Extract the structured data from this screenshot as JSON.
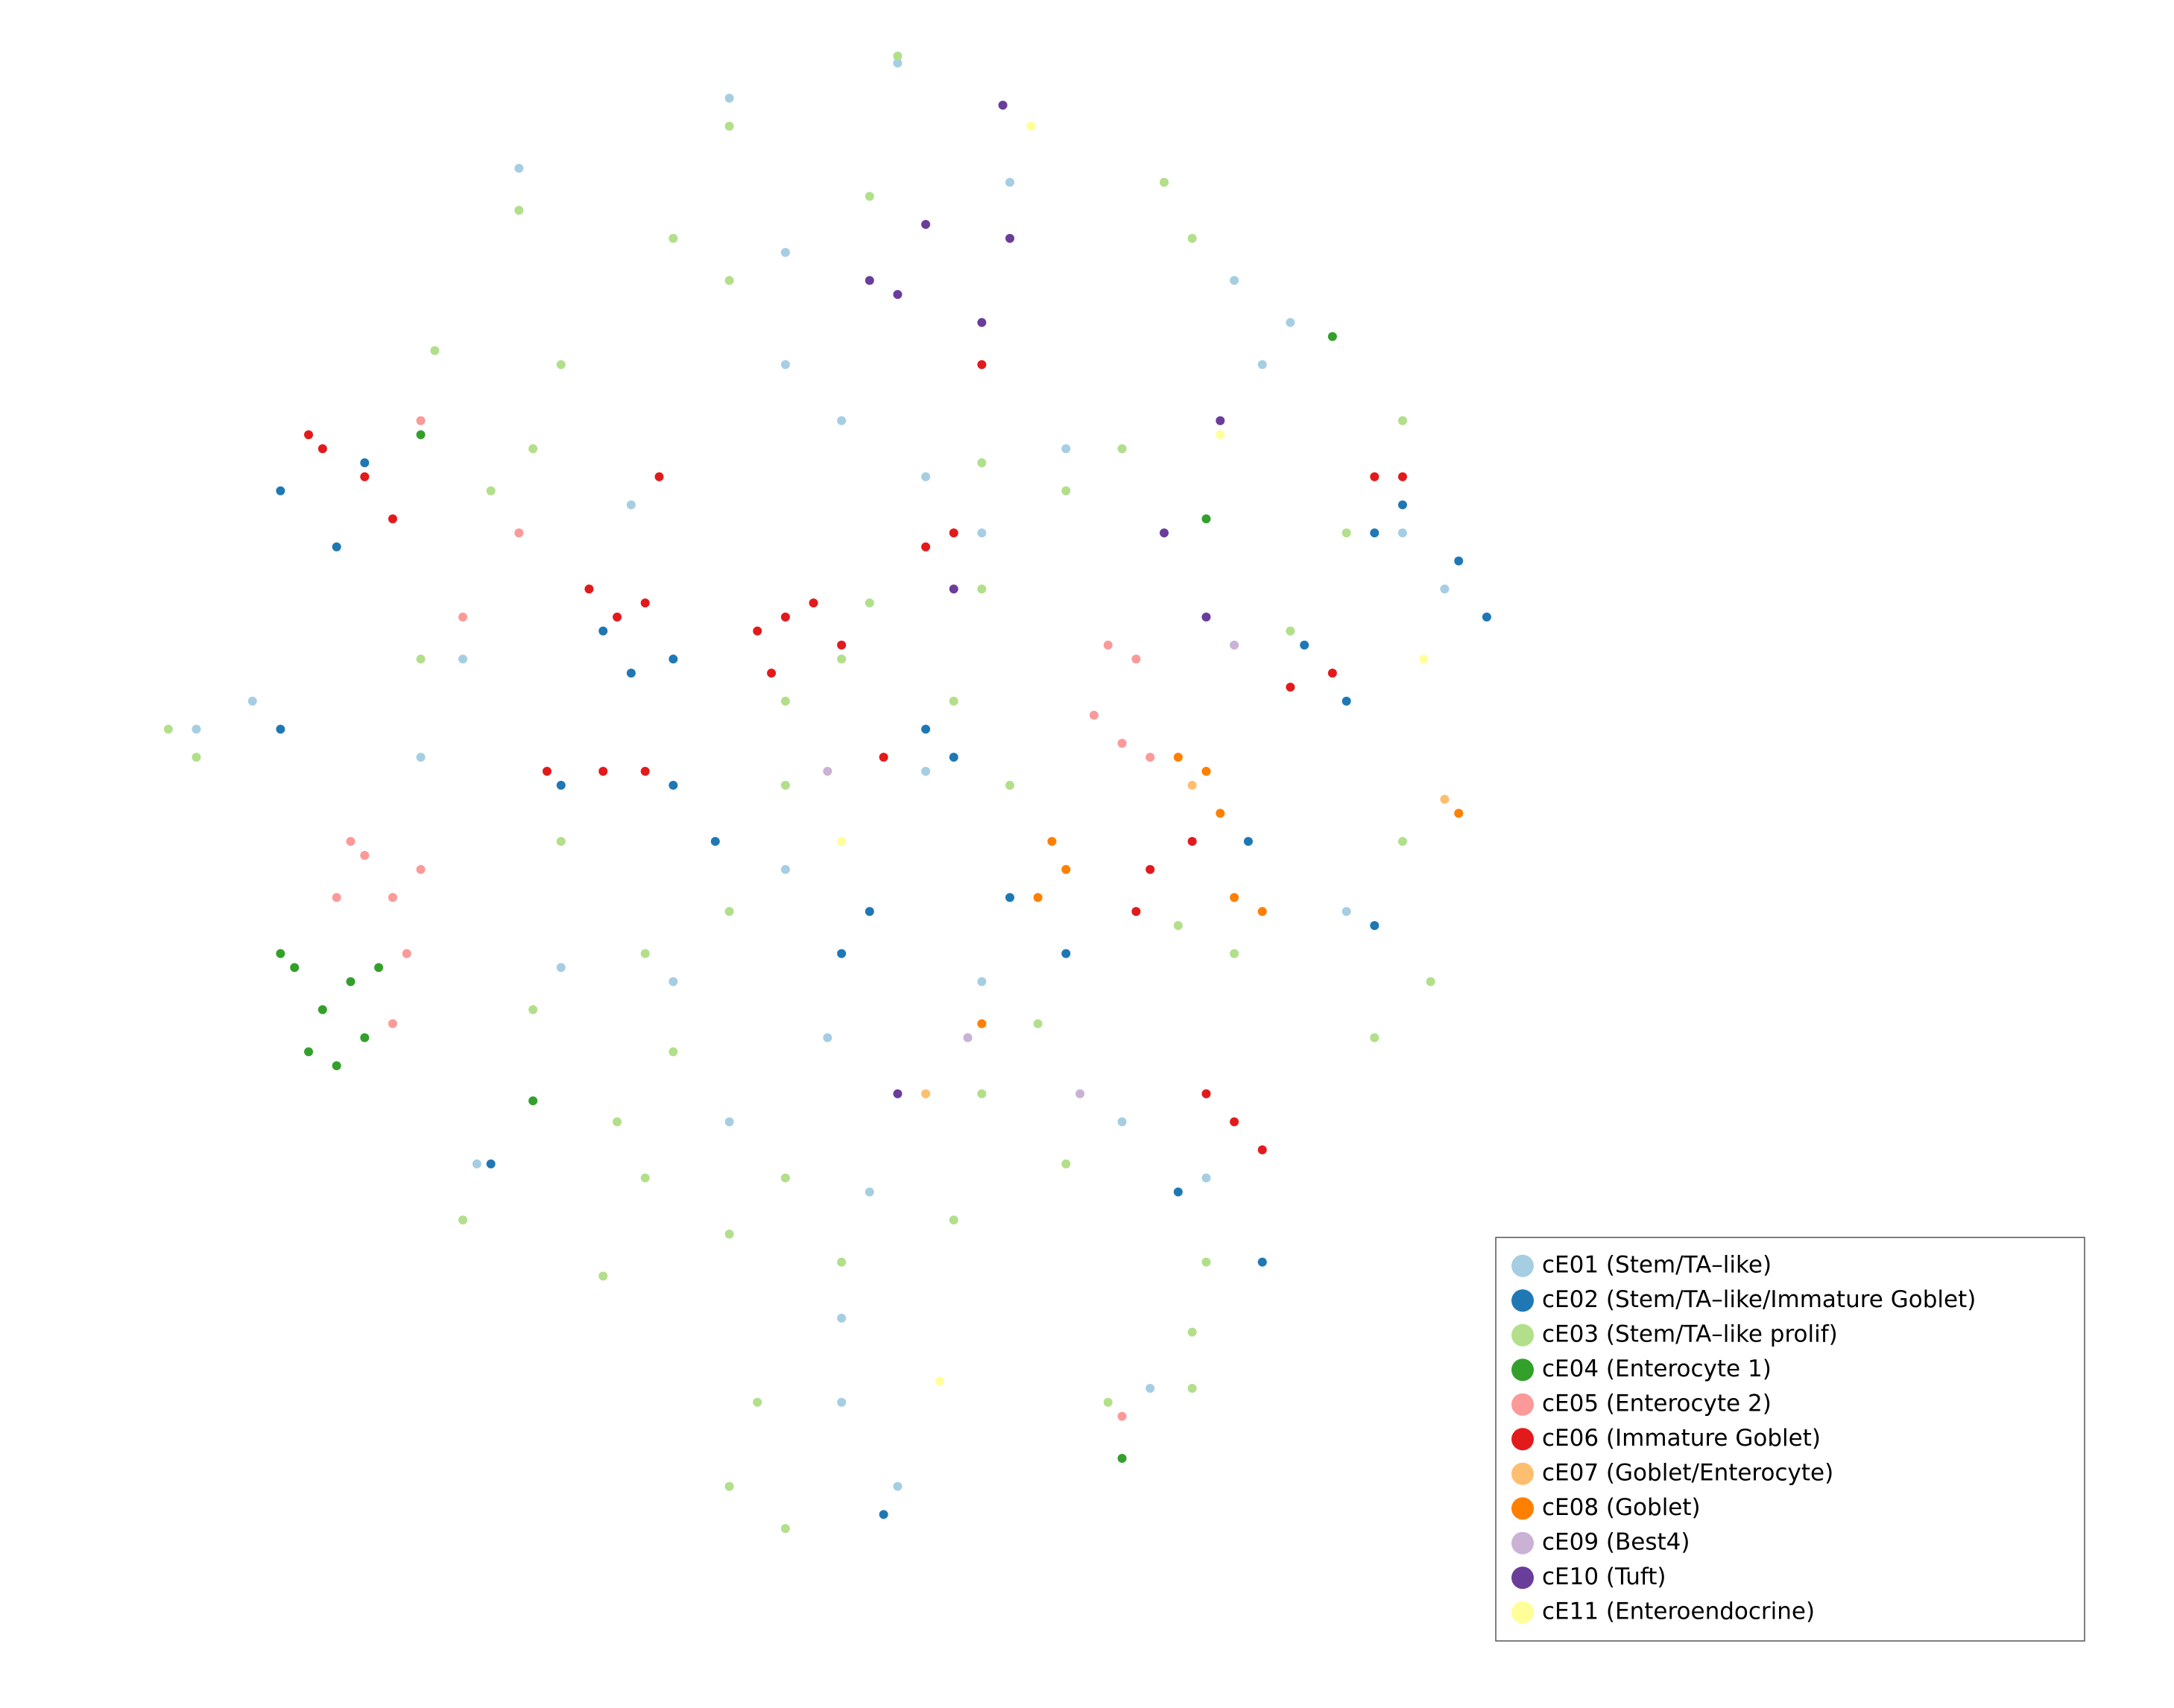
{
  "chart_data": {
    "type": "scatter",
    "xlim": [
      0,
      1550
    ],
    "ylim": [
      1218,
      0
    ],
    "legend": "lower right",
    "series": [
      {
        "name": "cE01 (Stem/TA–like)",
        "color": "#a6cee3",
        "x": [
          370,
          520,
          640,
          560,
          600,
          880,
          920,
          450,
          330,
          180,
          300,
          560,
          660,
          700,
          590,
          620,
          800,
          820,
          600,
          640,
          860,
          1000,
          1030,
          960,
          700,
          720,
          560,
          340,
          400,
          480,
          520,
          660,
          760,
          900,
          140,
          600
        ],
        "y": [
          120,
          70,
          45,
          260,
          300,
          200,
          230,
          360,
          470,
          500,
          540,
          620,
          550,
          700,
          740,
          850,
          800,
          990,
          1000,
          1060,
          840,
          380,
          420,
          650,
          380,
          130,
          180,
          830,
          690,
          700,
          800,
          340,
          320,
          260,
          520,
          940
        ]
      },
      {
        "name": "cE02 (Stem/TA–like/Immature Goblet)",
        "color": "#1f78b4",
        "x": [
          200,
          240,
          260,
          430,
          450,
          480,
          400,
          480,
          510,
          620,
          680,
          720,
          660,
          980,
          1040,
          1060,
          1000,
          930,
          960,
          890,
          980,
          200,
          350,
          630,
          840,
          900,
          600,
          760
        ],
        "y": [
          350,
          390,
          330,
          450,
          480,
          470,
          560,
          560,
          600,
          650,
          540,
          640,
          520,
          380,
          400,
          440,
          360,
          460,
          500,
          600,
          660,
          520,
          830,
          1080,
          850,
          900,
          680,
          680
        ]
      },
      {
        "name": "cE03 (Stem/TA–like prolif)",
        "color": "#b2df8a",
        "x": [
          370,
          520,
          640,
          830,
          850,
          310,
          400,
          480,
          520,
          620,
          700,
          760,
          800,
          140,
          120,
          350,
          380,
          560,
          600,
          300,
          560,
          460,
          380,
          480,
          440,
          460,
          560,
          520,
          540,
          520,
          560,
          600,
          680,
          700,
          760,
          740,
          860,
          850,
          880,
          840,
          1000,
          1020,
          980,
          1040,
          960,
          1000,
          920,
          330,
          430,
          790,
          850,
          680,
          620,
          700,
          720,
          400,
          520
        ],
        "y": [
          150,
          90,
          40,
          130,
          170,
          250,
          260,
          170,
          200,
          140,
          330,
          350,
          320,
          540,
          520,
          350,
          320,
          500,
          470,
          470,
          560,
          680,
          720,
          750,
          800,
          840,
          840,
          880,
          1000,
          1060,
          1090,
          900,
          870,
          780,
          830,
          730,
          900,
          950,
          680,
          660,
          600,
          700,
          740,
          580,
          380,
          300,
          450,
          870,
          910,
          1000,
          990,
          500,
          430,
          420,
          560,
          600,
          650
        ]
      },
      {
        "name": "cE04 (Enterocyte 1)",
        "color": "#33a02c",
        "x": [
          210,
          230,
          220,
          250,
          260,
          240,
          200,
          270,
          300,
          380,
          860,
          950,
          800
        ],
        "y": [
          690,
          720,
          750,
          700,
          740,
          760,
          680,
          690,
          310,
          785,
          370,
          240,
          1040
        ]
      },
      {
        "name": "cE05 (Enterocyte 2)",
        "color": "#fb9a99",
        "x": [
          240,
          260,
          280,
          250,
          300,
          290,
          280,
          800,
          790,
          810,
          820,
          780,
          330,
          370,
          300,
          800
        ],
        "y": [
          640,
          610,
          640,
          600,
          620,
          680,
          730,
          530,
          460,
          470,
          540,
          510,
          440,
          380,
          300,
          1010
        ]
      },
      {
        "name": "cE06 (Immature Goblet)",
        "color": "#e31a1c",
        "x": [
          230,
          260,
          280,
          220,
          420,
          440,
          460,
          540,
          560,
          580,
          600,
          550,
          390,
          430,
          460,
          470,
          700,
          660,
          680,
          810,
          820,
          850,
          860,
          880,
          900,
          980,
          1000,
          920,
          950,
          630
        ],
        "y": [
          320,
          340,
          370,
          310,
          420,
          440,
          430,
          450,
          440,
          430,
          460,
          480,
          550,
          550,
          550,
          340,
          260,
          390,
          380,
          650,
          620,
          600,
          780,
          800,
          820,
          340,
          340,
          490,
          480,
          540
        ]
      },
      {
        "name": "cE07 (Goblet/Enterocyte)",
        "color": "#fdbf6f",
        "x": [
          660,
          850,
          1030
        ],
        "y": [
          780,
          560,
          570
        ]
      },
      {
        "name": "cE08 (Goblet)",
        "color": "#ff7f00",
        "x": [
          750,
          760,
          740,
          840,
          860,
          870,
          880,
          900,
          700,
          1040
        ],
        "y": [
          600,
          620,
          640,
          540,
          550,
          580,
          640,
          650,
          730,
          580
        ]
      },
      {
        "name": "cE09 (Best4)",
        "color": "#cab2d6",
        "x": [
          770,
          880,
          590,
          690
        ],
        "y": [
          780,
          460,
          550,
          740
        ]
      },
      {
        "name": "cE10 (Tuft)",
        "color": "#6a3d9a",
        "x": [
          620,
          640,
          700,
          660,
          720,
          680,
          860,
          870,
          640,
          715,
          830
        ],
        "y": [
          200,
          210,
          230,
          160,
          170,
          420,
          440,
          300,
          780,
          75,
          380
        ]
      },
      {
        "name": "cE11 (Enteroendocrine)",
        "color": "#ffff99",
        "x": [
          735,
          870,
          1015,
          670,
          600
        ],
        "y": [
          90,
          310,
          470,
          985,
          600
        ]
      }
    ]
  }
}
